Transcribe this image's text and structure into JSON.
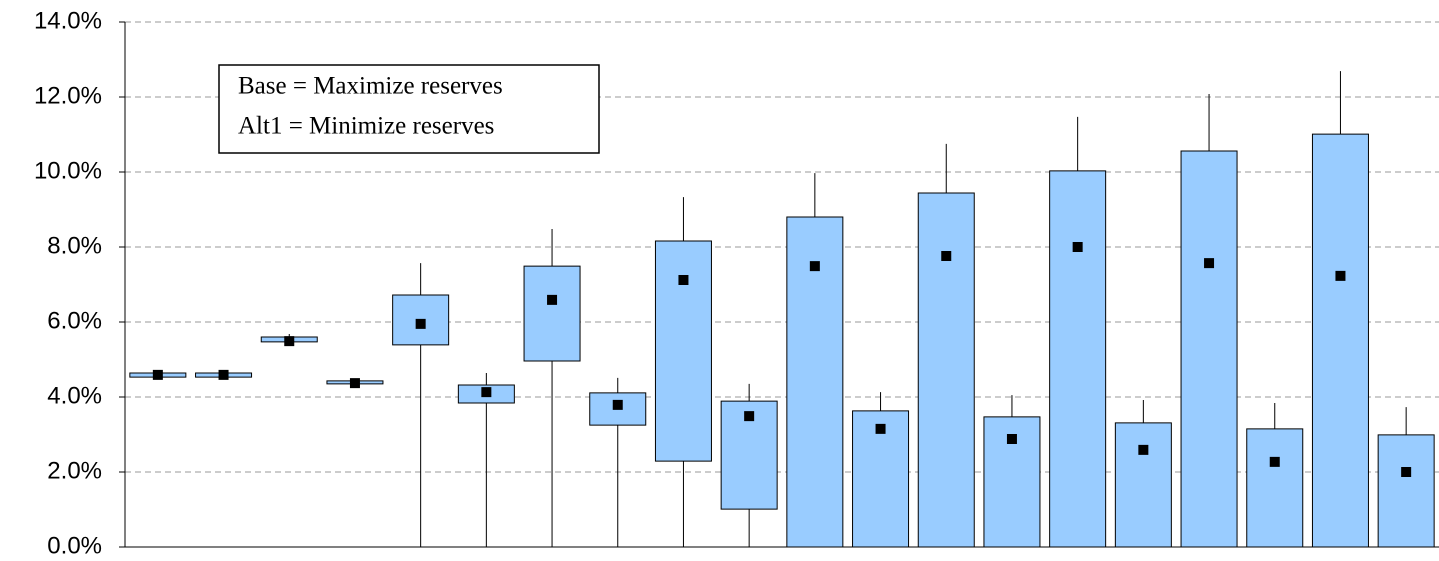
{
  "chart_data": {
    "type": "box",
    "categories": [
      null,
      null,
      null,
      null,
      null,
      null,
      null,
      null,
      null,
      null,
      null,
      null,
      null,
      null,
      null,
      null,
      null,
      null,
      null,
      null
    ],
    "high": [
      4.64,
      4.64,
      5.68,
      4.43,
      7.57,
      4.64,
      8.48,
      4.51,
      9.33,
      4.35,
      9.97,
      4.13,
      10.75,
      4.05,
      11.47,
      3.92,
      12.08,
      3.84,
      12.69,
      3.73
    ],
    "box_high": [
      4.64,
      4.64,
      5.6,
      4.43,
      6.72,
      4.32,
      7.49,
      4.11,
      8.16,
      3.89,
      8.8,
      3.63,
      9.44,
      3.47,
      10.03,
      3.31,
      10.56,
      3.15,
      11.01,
      2.99
    ],
    "box_low": [
      4.53,
      4.53,
      5.47,
      4.35,
      5.39,
      3.84,
      4.96,
      3.25,
      2.29,
      1.01,
      0,
      0,
      0,
      0,
      0,
      0,
      0,
      0,
      0,
      0
    ],
    "low": [
      4.53,
      4.53,
      5.47,
      4.35,
      0,
      0,
      0,
      0,
      0,
      0,
      0,
      0,
      0,
      0,
      0,
      0,
      0,
      0,
      0,
      0
    ],
    "mean": [
      4.59,
      4.59,
      5.49,
      4.37,
      5.95,
      4.13,
      6.59,
      3.79,
      7.12,
      3.49,
      7.49,
      3.15,
      7.76,
      2.88,
      8.0,
      2.59,
      7.57,
      2.27,
      7.23,
      2.0
    ],
    "color": "#99ccff",
    "mean_color": "#000000",
    "ylim": [
      0,
      14
    ],
    "yticks": [
      {
        "value": 0,
        "label": "0.0%"
      },
      {
        "value": 2,
        "label": "2.0%"
      },
      {
        "value": 4,
        "label": "4.0%"
      },
      {
        "value": 6,
        "label": "6.0%"
      },
      {
        "value": 8,
        "label": "8.0%"
      },
      {
        "value": 10,
        "label": "10.0%"
      },
      {
        "value": 12,
        "label": "12.0%"
      },
      {
        "value": 14,
        "label": "14.0%"
      }
    ],
    "grid": true,
    "annotations": [
      "Base = Maximize reserves",
      "Alt1 = Minimize reserves"
    ]
  }
}
